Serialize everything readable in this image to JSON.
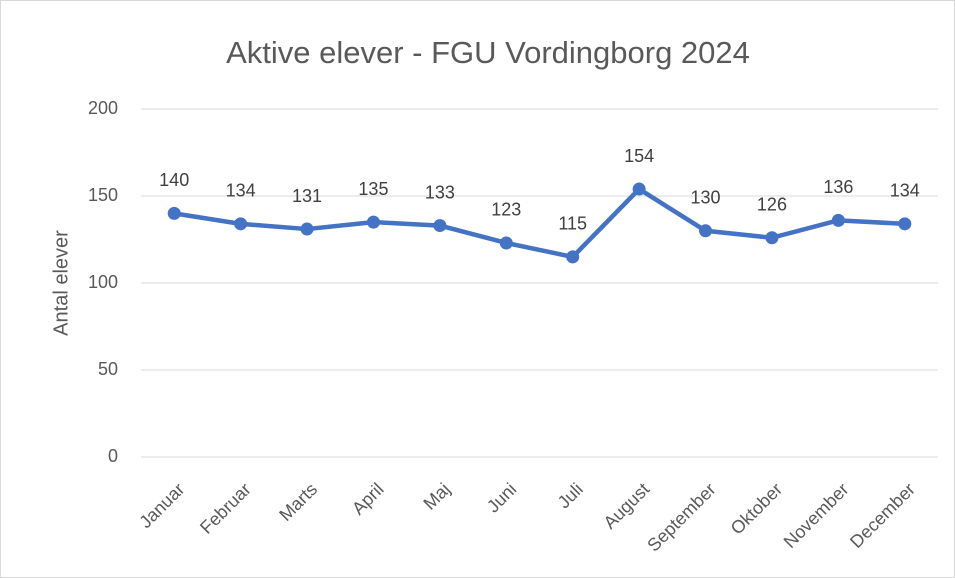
{
  "chart_data": {
    "type": "line",
    "title": "Aktive elever - FGU Vordingborg 2024",
    "y_label": "Antal elever",
    "categories": [
      "Januar",
      "Februar",
      "Marts",
      "April",
      "Maj",
      "Juni",
      "Juli",
      "August",
      "September",
      "Oktober",
      "November",
      "December"
    ],
    "series": [
      {
        "name": "Antal elever",
        "color": "#4472c4",
        "values": [
          140,
          134,
          131,
          135,
          133,
          123,
          115,
          154,
          130,
          126,
          136,
          134
        ]
      }
    ],
    "ylim": [
      0,
      200
    ],
    "yticks": [
      0,
      50,
      100,
      150,
      200
    ],
    "grid": true
  }
}
